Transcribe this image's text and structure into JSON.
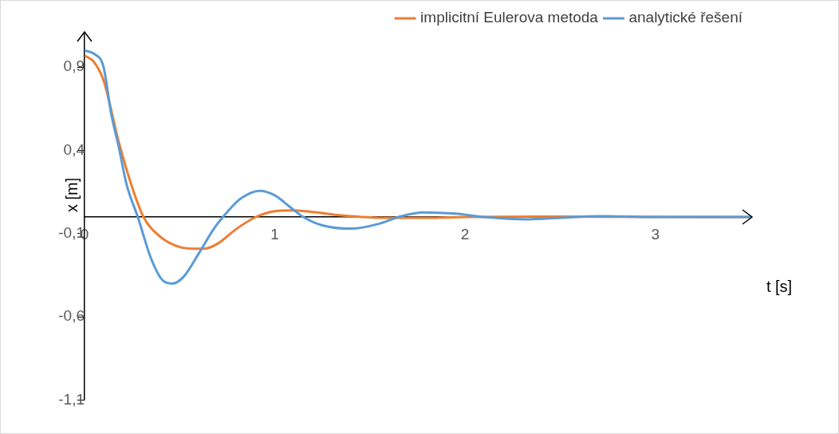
{
  "chart_data": {
    "type": "line",
    "xlabel": "t [s]",
    "ylabel": "x [m]",
    "xlim": [
      0,
      3.5
    ],
    "ylim": [
      -1.1,
      1.1
    ],
    "xticks": [
      0,
      1,
      2,
      3
    ],
    "yticks": [
      {
        "value": 0.9,
        "label": "0,9"
      },
      {
        "value": 0.4,
        "label": "0,4"
      },
      {
        "value": -0.1,
        "label": "-0,1"
      },
      {
        "value": -0.6,
        "label": "-0,6"
      },
      {
        "value": -1.1,
        "label": "-1,1"
      }
    ],
    "grid": false,
    "legend": "top right",
    "marker": "none",
    "line_style": "solid",
    "series": [
      {
        "name": "implicitní Eulerova metoda",
        "color": "#ed7d31",
        "x": [
          0,
          0.05,
          0.1,
          0.18,
          0.25,
          0.31,
          0.4,
          0.5,
          0.58,
          0.63,
          0.7,
          0.8,
          0.9,
          1.0,
          1.09,
          1.2,
          1.35,
          1.6,
          1.8,
          2.0,
          2.5,
          3.5
        ],
        "values": [
          0.97,
          0.93,
          0.82,
          0.45,
          0.18,
          0,
          -0.12,
          -0.18,
          -0.19,
          -0.19,
          -0.16,
          -0.07,
          0,
          0.035,
          0.04,
          0.03,
          0.01,
          -0.005,
          -0.005,
          0,
          0.002,
          0
        ]
      },
      {
        "name": "analytické řešení",
        "color": "#5b9bd5",
        "x": [
          0,
          0.05,
          0.1,
          0.14,
          0.18,
          0.22,
          0.28,
          0.35,
          0.41,
          0.46,
          0.52,
          0.6,
          0.68,
          0.75,
          0.82,
          0.92,
          1.0,
          1.08,
          1.15,
          1.25,
          1.4,
          1.55,
          1.65,
          1.78,
          1.95,
          2.1,
          2.33,
          2.5,
          2.7,
          3.0,
          3.5
        ],
        "values": [
          1.0,
          0.98,
          0.9,
          0.62,
          0.42,
          0.2,
          0,
          -0.25,
          -0.38,
          -0.4,
          -0.36,
          -0.22,
          -0.07,
          0.03,
          0.11,
          0.157,
          0.13,
          0.06,
          0,
          -0.05,
          -0.07,
          -0.04,
          0,
          0.028,
          0.02,
          0,
          -0.014,
          -0.005,
          0.005,
          0,
          0
        ]
      }
    ]
  }
}
